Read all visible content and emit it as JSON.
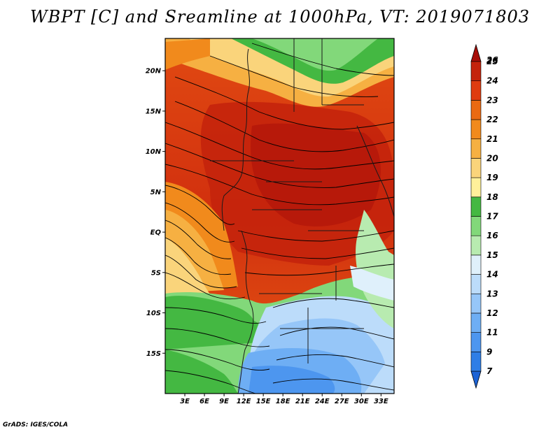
{
  "title": "WBPT [C] and Sreamline at 1000hPa, VT: 2019071803",
  "footer": "GrADS: IGES/COLA",
  "map": {
    "lon_range": [
      0,
      35
    ],
    "lat_range": [
      -20,
      24
    ],
    "lon_ticks": [
      {
        "value": 3,
        "label": "3E"
      },
      {
        "value": 6,
        "label": "6E"
      },
      {
        "value": 9,
        "label": "9E"
      },
      {
        "value": 12,
        "label": "12E"
      },
      {
        "value": 15,
        "label": "15E"
      },
      {
        "value": 18,
        "label": "18E"
      },
      {
        "value": 21,
        "label": "21E"
      },
      {
        "value": 24,
        "label": "24E"
      },
      {
        "value": 27,
        "label": "27E"
      },
      {
        "value": 30,
        "label": "30E"
      },
      {
        "value": 33,
        "label": "33E"
      }
    ],
    "lat_ticks": [
      {
        "value": 20,
        "label": "20N"
      },
      {
        "value": 15,
        "label": "15N"
      },
      {
        "value": 10,
        "label": "10N"
      },
      {
        "value": 5,
        "label": "5N"
      },
      {
        "value": 0,
        "label": "EQ"
      },
      {
        "value": -5,
        "label": "5S"
      },
      {
        "value": -10,
        "label": "10S"
      },
      {
        "value": -15,
        "label": "15S"
      }
    ]
  },
  "colorbar": {
    "levels": [
      "7",
      "9",
      "11",
      "12",
      "13",
      "14",
      "15",
      "16",
      "17",
      "18",
      "19",
      "20",
      "21",
      "22",
      "23",
      "24",
      "25",
      "26"
    ],
    "colors": [
      "#1c63d6",
      "#2f7ee6",
      "#4d96ef",
      "#6eaef4",
      "#96c6f8",
      "#bcdcfa",
      "#dff0fb",
      "#b8ebb0",
      "#82d87a",
      "#44b842",
      "#fff09a",
      "#fad47b",
      "#f6b042",
      "#f18a1c",
      "#ea6a12",
      "#df3c10",
      "#c4230c",
      "#a80e08"
    ]
  }
}
